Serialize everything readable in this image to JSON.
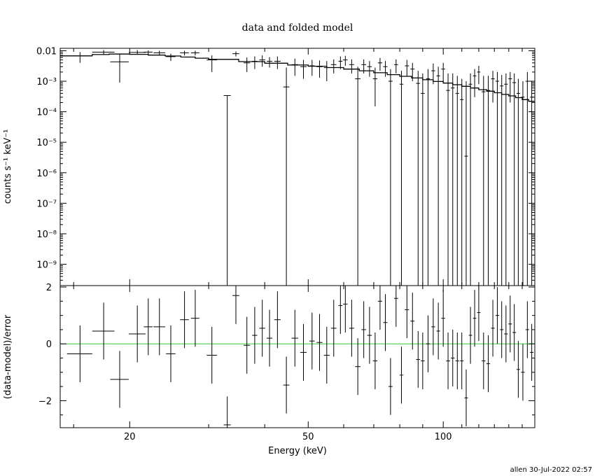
{
  "figure": {
    "title": "data and folded model",
    "footer": "allen 30-Jul-2022 02:57"
  },
  "chart_data": [
    {
      "panel": "spectrum",
      "type": "scatter",
      "title": "data and folded model",
      "ylabel": "counts s⁻¹ keV⁻¹",
      "xscale": "log",
      "yscale": "log",
      "xlim": [
        14,
        160
      ],
      "ylim": [
        2e-10,
        0.012
      ],
      "ytick_labels": [
        "0.01",
        "10⁻³",
        "10⁻⁴",
        "10⁻⁵",
        "10⁻⁶",
        "10⁻⁷",
        "10⁻⁸",
        "10⁻⁹"
      ],
      "ytick_values": [
        0.01,
        0.001,
        0.0001,
        1e-05,
        1e-06,
        1e-07,
        1e-08,
        1e-09
      ],
      "grid": false,
      "data": [
        {
          "x": 15.5,
          "y": 0.0067,
          "xerr": 1.0,
          "ylo": 0.004,
          "yhi": 0.009
        },
        {
          "x": 17.5,
          "y": 0.009,
          "xerr": 1.0,
          "ylo": 0.0075,
          "yhi": 0.0105
        },
        {
          "x": 19.0,
          "y": 0.0043,
          "xerr": 0.9,
          "ylo": 0.0009,
          "yhi": 0.008
        },
        {
          "x": 20.8,
          "y": 0.0088,
          "xerr": 0.9,
          "ylo": 0.0075,
          "yhi": 0.0105
        },
        {
          "x": 22.0,
          "y": 0.009,
          "xerr": 0.5,
          "ylo": 0.0078,
          "yhi": 0.0103
        },
        {
          "x": 23.3,
          "y": 0.0085,
          "xerr": 0.7,
          "ylo": 0.007,
          "yhi": 0.01
        },
        {
          "x": 24.7,
          "y": 0.0064,
          "xerr": 0.6,
          "ylo": 0.0046,
          "yhi": 0.008
        },
        {
          "x": 26.5,
          "y": 0.0085,
          "xerr": 0.6,
          "ylo": 0.007,
          "yhi": 0.01
        },
        {
          "x": 28.0,
          "y": 0.0085,
          "xerr": 0.6,
          "ylo": 0.007,
          "yhi": 0.01
        },
        {
          "x": 30.5,
          "y": 0.005,
          "xerr": 0.8,
          "ylo": 0.002,
          "yhi": 0.007
        },
        {
          "x": 33.0,
          "y": 0.00034,
          "xerr": 0.6,
          "ylo": 2e-10,
          "yhi": 0.00034
        },
        {
          "x": 34.5,
          "y": 0.008,
          "xerr": 0.6,
          "ylo": 0.0065,
          "yhi": 0.0095
        },
        {
          "x": 36.5,
          "y": 0.004,
          "xerr": 0.6,
          "ylo": 0.002,
          "yhi": 0.006
        },
        {
          "x": 38.0,
          "y": 0.0045,
          "xerr": 0.5,
          "ylo": 0.0025,
          "yhi": 0.0065
        },
        {
          "x": 39.5,
          "y": 0.005,
          "xerr": 0.6,
          "ylo": 0.003,
          "yhi": 0.007
        },
        {
          "x": 41.0,
          "y": 0.0045,
          "xerr": 0.6,
          "ylo": 0.0028,
          "yhi": 0.0062
        },
        {
          "x": 42.7,
          "y": 0.0045,
          "xerr": 0.7,
          "ylo": 0.0025,
          "yhi": 0.0065
        },
        {
          "x": 44.7,
          "y": 0.00065,
          "xerr": 0.7,
          "ylo": 2e-10,
          "yhi": 0.0028
        },
        {
          "x": 46.7,
          "y": 0.0035,
          "xerr": 0.8,
          "ylo": 0.0015,
          "yhi": 0.0055
        },
        {
          "x": 48.8,
          "y": 0.003,
          "xerr": 0.8,
          "ylo": 0.0012,
          "yhi": 0.005
        },
        {
          "x": 51.0,
          "y": 0.0032,
          "xerr": 0.7,
          "ylo": 0.0015,
          "yhi": 0.005
        },
        {
          "x": 53.0,
          "y": 0.003,
          "xerr": 0.8,
          "ylo": 0.0013,
          "yhi": 0.0048
        },
        {
          "x": 55.0,
          "y": 0.0028,
          "xerr": 0.8,
          "ylo": 0.001,
          "yhi": 0.0046
        },
        {
          "x": 57.0,
          "y": 0.0035,
          "xerr": 0.8,
          "ylo": 0.0018,
          "yhi": 0.0052
        },
        {
          "x": 59.0,
          "y": 0.0045,
          "xerr": 0.6,
          "ylo": 0.0025,
          "yhi": 0.0065
        },
        {
          "x": 60.5,
          "y": 0.005,
          "xerr": 0.7,
          "ylo": 0.0032,
          "yhi": 0.0068
        },
        {
          "x": 62.5,
          "y": 0.0035,
          "xerr": 0.8,
          "ylo": 0.0018,
          "yhi": 0.0052
        },
        {
          "x": 64.5,
          "y": 0.0012,
          "xerr": 0.9,
          "ylo": 2e-10,
          "yhi": 0.003
        },
        {
          "x": 66.5,
          "y": 0.0035,
          "xerr": 0.8,
          "ylo": 0.0018,
          "yhi": 0.0052
        },
        {
          "x": 68.5,
          "y": 0.003,
          "xerr": 0.8,
          "ylo": 0.0014,
          "yhi": 0.0046
        },
        {
          "x": 70.5,
          "y": 0.0012,
          "xerr": 0.8,
          "ylo": 0.00015,
          "yhi": 0.0028
        },
        {
          "x": 72.3,
          "y": 0.004,
          "xerr": 0.8,
          "ylo": 0.0022,
          "yhi": 0.0058
        },
        {
          "x": 74.3,
          "y": 0.003,
          "xerr": 0.8,
          "ylo": 0.0014,
          "yhi": 0.0046
        },
        {
          "x": 76.3,
          "y": 0.001,
          "xerr": 0.8,
          "ylo": 2e-10,
          "yhi": 0.0025
        },
        {
          "x": 78.5,
          "y": 0.0035,
          "xerr": 0.8,
          "ylo": 0.0018,
          "yhi": 0.0052
        },
        {
          "x": 80.7,
          "y": 0.0008,
          "xerr": 0.8,
          "ylo": 2e-10,
          "yhi": 0.0022
        },
        {
          "x": 83.0,
          "y": 0.0032,
          "xerr": 0.9,
          "ylo": 0.0015,
          "yhi": 0.005
        },
        {
          "x": 85.4,
          "y": 0.0025,
          "xerr": 0.9,
          "ylo": 0.001,
          "yhi": 0.004
        },
        {
          "x": 87.9,
          "y": 0.00085,
          "xerr": 0.9,
          "ylo": 2e-10,
          "yhi": 0.0022
        },
        {
          "x": 90.0,
          "y": 0.0004,
          "xerr": 0.9,
          "ylo": 2e-10,
          "yhi": 0.0018
        },
        {
          "x": 92.5,
          "y": 0.0012,
          "xerr": 0.9,
          "ylo": 2e-10,
          "yhi": 0.0025
        },
        {
          "x": 95.0,
          "y": 0.0022,
          "xerr": 0.9,
          "ylo": 0.0008,
          "yhi": 0.0038
        },
        {
          "x": 97.5,
          "y": 0.0015,
          "xerr": 0.9,
          "ylo": 2e-10,
          "yhi": 0.003
        },
        {
          "x": 100.0,
          "y": 0.0025,
          "xerr": 1.0,
          "ylo": 0.0009,
          "yhi": 0.004
        },
        {
          "x": 102.5,
          "y": 0.0005,
          "xerr": 1.0,
          "ylo": 2e-10,
          "yhi": 0.0018
        },
        {
          "x": 105.0,
          "y": 0.0006,
          "xerr": 1.0,
          "ylo": 2e-10,
          "yhi": 0.0018
        },
        {
          "x": 107.5,
          "y": 0.0004,
          "xerr": 1.0,
          "ylo": 2e-10,
          "yhi": 0.0015
        },
        {
          "x": 110.0,
          "y": 0.00025,
          "xerr": 1.0,
          "ylo": 2e-10,
          "yhi": 0.0012
        },
        {
          "x": 112.5,
          "y": 3.5e-06,
          "xerr": 1.0,
          "ylo": 2e-10,
          "yhi": 0.001
        },
        {
          "x": 115.0,
          "y": 0.0008,
          "xerr": 1.0,
          "ylo": 2e-10,
          "yhi": 0.0018
        },
        {
          "x": 117.5,
          "y": 0.0015,
          "xerr": 1.0,
          "ylo": 0.0003,
          "yhi": 0.0025
        },
        {
          "x": 120.0,
          "y": 0.002,
          "xerr": 1.0,
          "ylo": 0.0008,
          "yhi": 0.0032
        },
        {
          "x": 123.0,
          "y": 0.00045,
          "xerr": 1.2,
          "ylo": 2e-10,
          "yhi": 0.0015
        },
        {
          "x": 126.0,
          "y": 0.0005,
          "xerr": 1.2,
          "ylo": 2e-10,
          "yhi": 0.0015
        },
        {
          "x": 129.0,
          "y": 0.0012,
          "xerr": 1.2,
          "ylo": 0.0002,
          "yhi": 0.0022
        },
        {
          "x": 132.0,
          "y": 0.001,
          "xerr": 1.2,
          "ylo": 2e-10,
          "yhi": 0.002
        },
        {
          "x": 135.0,
          "y": 0.0007,
          "xerr": 1.2,
          "ylo": 2e-10,
          "yhi": 0.0016
        },
        {
          "x": 138.0,
          "y": 0.0008,
          "xerr": 1.3,
          "ylo": 2e-10,
          "yhi": 0.0018
        },
        {
          "x": 141.0,
          "y": 0.0012,
          "xerr": 1.3,
          "ylo": 0.0002,
          "yhi": 0.002
        },
        {
          "x": 144.0,
          "y": 0.0009,
          "xerr": 1.3,
          "ylo": 2e-10,
          "yhi": 0.0018
        },
        {
          "x": 147.0,
          "y": 0.0004,
          "xerr": 1.3,
          "ylo": 2e-10,
          "yhi": 0.0012
        },
        {
          "x": 150.5,
          "y": 0.0003,
          "xerr": 1.4,
          "ylo": 2e-10,
          "yhi": 0.001
        },
        {
          "x": 154.0,
          "y": 0.001,
          "xerr": 1.4,
          "ylo": 2e-10,
          "yhi": 0.002
        },
        {
          "x": 157.5,
          "y": 0.0003,
          "xerr": 1.4,
          "ylo": 2e-10,
          "yhi": 0.001
        }
      ],
      "model": {
        "x": [
          14,
          16.5,
          18,
          20,
          22,
          24,
          26,
          28,
          30,
          35,
          40,
          45,
          50,
          55,
          60,
          65,
          70,
          75,
          80,
          85,
          90,
          95,
          100,
          105,
          110,
          115,
          120,
          125,
          130,
          135,
          140,
          145,
          150,
          155,
          160
        ],
        "y": [
          0.0068,
          0.0075,
          0.0078,
          0.0076,
          0.0072,
          0.0067,
          0.0062,
          0.0057,
          0.0052,
          0.0044,
          0.0039,
          0.0034,
          0.0031,
          0.0028,
          0.0025,
          0.0022,
          0.0019,
          0.00165,
          0.00145,
          0.00128,
          0.00112,
          0.00098,
          0.00087,
          0.00077,
          0.00068,
          0.0006,
          0.00053,
          0.00047,
          0.00042,
          0.00037,
          0.00033,
          0.00029,
          0.00025,
          0.00022,
          0.00019
        ]
      },
      "color": "#000000"
    },
    {
      "panel": "residuals",
      "type": "scatter",
      "xlabel": "Energy (keV)",
      "ylabel": "(data-model)/error",
      "xscale": "log",
      "xlim": [
        14,
        160
      ],
      "ylim": [
        -2.95,
        2.05
      ],
      "xtick_labels": [
        "20",
        "50",
        "100"
      ],
      "xtick_values": [
        20,
        50,
        100
      ],
      "ytick_labels": [
        "2",
        "0",
        "−2"
      ],
      "ytick_values": [
        2,
        0,
        -2
      ],
      "zero_line_color": "#33cc33",
      "grid": false,
      "data": [
        {
          "x": 15.5,
          "y": -0.35,
          "xerr": 1.0,
          "err": 1.0
        },
        {
          "x": 17.5,
          "y": 0.45,
          "xerr": 1.0,
          "err": 1.0
        },
        {
          "x": 19.0,
          "y": -1.25,
          "xerr": 0.9,
          "err": 1.0
        },
        {
          "x": 20.8,
          "y": 0.35,
          "xerr": 0.9,
          "err": 1.0
        },
        {
          "x": 22.0,
          "y": 0.6,
          "xerr": 0.5,
          "err": 1.0
        },
        {
          "x": 23.3,
          "y": 0.6,
          "xerr": 0.7,
          "err": 1.0
        },
        {
          "x": 24.7,
          "y": -0.35,
          "xerr": 0.6,
          "err": 1.0
        },
        {
          "x": 26.5,
          "y": 0.85,
          "xerr": 0.6,
          "err": 1.0
        },
        {
          "x": 28.0,
          "y": 0.9,
          "xerr": 0.6,
          "err": 1.0
        },
        {
          "x": 30.5,
          "y": -0.4,
          "xerr": 0.8,
          "err": 1.0
        },
        {
          "x": 33.0,
          "y": -2.85,
          "xerr": 0.6,
          "err": 1.0
        },
        {
          "x": 34.5,
          "y": 1.7,
          "xerr": 0.6,
          "err": 1.0
        },
        {
          "x": 36.5,
          "y": -0.05,
          "xerr": 0.6,
          "err": 1.0
        },
        {
          "x": 38.0,
          "y": 0.3,
          "xerr": 0.5,
          "err": 1.0
        },
        {
          "x": 39.5,
          "y": 0.55,
          "xerr": 0.6,
          "err": 1.0
        },
        {
          "x": 41.0,
          "y": 0.2,
          "xerr": 0.6,
          "err": 1.0
        },
        {
          "x": 42.7,
          "y": 0.85,
          "xerr": 0.7,
          "err": 1.0
        },
        {
          "x": 44.7,
          "y": -1.45,
          "xerr": 0.7,
          "err": 1.0
        },
        {
          "x": 46.7,
          "y": 0.2,
          "xerr": 0.8,
          "err": 1.0
        },
        {
          "x": 48.8,
          "y": -0.3,
          "xerr": 0.8,
          "err": 1.0
        },
        {
          "x": 51.0,
          "y": 0.1,
          "xerr": 0.7,
          "err": 1.0
        },
        {
          "x": 53.0,
          "y": 0.05,
          "xerr": 0.8,
          "err": 1.0
        },
        {
          "x": 55.0,
          "y": -0.4,
          "xerr": 0.8,
          "err": 1.0
        },
        {
          "x": 57.0,
          "y": 0.55,
          "xerr": 0.8,
          "err": 1.0
        },
        {
          "x": 59.0,
          "y": 1.35,
          "xerr": 0.6,
          "err": 1.0
        },
        {
          "x": 60.5,
          "y": 1.4,
          "xerr": 0.7,
          "err": 1.0
        },
        {
          "x": 62.5,
          "y": 0.55,
          "xerr": 0.8,
          "err": 1.0
        },
        {
          "x": 64.5,
          "y": -0.8,
          "xerr": 0.9,
          "err": 1.0
        },
        {
          "x": 66.5,
          "y": 0.5,
          "xerr": 0.8,
          "err": 1.0
        },
        {
          "x": 68.5,
          "y": 0.3,
          "xerr": 0.8,
          "err": 1.0
        },
        {
          "x": 70.5,
          "y": -0.6,
          "xerr": 0.8,
          "err": 1.0
        },
        {
          "x": 72.3,
          "y": 1.5,
          "xerr": 0.8,
          "err": 1.0
        },
        {
          "x": 74.3,
          "y": 0.75,
          "xerr": 0.8,
          "err": 1.0
        },
        {
          "x": 76.3,
          "y": -1.5,
          "xerr": 0.8,
          "err": 1.0
        },
        {
          "x": 78.5,
          "y": 1.6,
          "xerr": 0.8,
          "err": 1.0
        },
        {
          "x": 80.7,
          "y": -1.1,
          "xerr": 0.8,
          "err": 1.0
        },
        {
          "x": 83.0,
          "y": 1.2,
          "xerr": 0.9,
          "err": 1.0
        },
        {
          "x": 85.4,
          "y": 0.8,
          "xerr": 0.9,
          "err": 1.0
        },
        {
          "x": 87.9,
          "y": -0.55,
          "xerr": 0.9,
          "err": 1.0
        },
        {
          "x": 90.0,
          "y": -0.6,
          "xerr": 0.9,
          "err": 1.0
        },
        {
          "x": 92.5,
          "y": 0.0,
          "xerr": 0.9,
          "err": 1.0
        },
        {
          "x": 95.0,
          "y": 0.6,
          "xerr": 0.9,
          "err": 1.0
        },
        {
          "x": 97.5,
          "y": 0.45,
          "xerr": 0.9,
          "err": 1.0
        },
        {
          "x": 100.0,
          "y": 0.9,
          "xerr": 1.0,
          "err": 1.0
        },
        {
          "x": 102.5,
          "y": -0.6,
          "xerr": 1.0,
          "err": 1.0
        },
        {
          "x": 105.0,
          "y": -0.5,
          "xerr": 1.0,
          "err": 1.0
        },
        {
          "x": 107.5,
          "y": -0.6,
          "xerr": 1.0,
          "err": 1.0
        },
        {
          "x": 110.0,
          "y": -0.6,
          "xerr": 1.0,
          "err": 1.0
        },
        {
          "x": 112.5,
          "y": -1.9,
          "xerr": 1.0,
          "err": 1.0
        },
        {
          "x": 115.0,
          "y": 0.3,
          "xerr": 1.0,
          "err": 1.0
        },
        {
          "x": 117.5,
          "y": 0.9,
          "xerr": 1.0,
          "err": 1.0
        },
        {
          "x": 120.0,
          "y": 1.1,
          "xerr": 1.0,
          "err": 1.0
        },
        {
          "x": 123.0,
          "y": -0.6,
          "xerr": 1.2,
          "err": 1.0
        },
        {
          "x": 126.0,
          "y": -0.7,
          "xerr": 1.2,
          "err": 1.0
        },
        {
          "x": 129.0,
          "y": 0.55,
          "xerr": 1.2,
          "err": 1.0
        },
        {
          "x": 132.0,
          "y": 1.0,
          "xerr": 1.2,
          "err": 1.0
        },
        {
          "x": 135.0,
          "y": 0.5,
          "xerr": 1.2,
          "err": 1.0
        },
        {
          "x": 138.0,
          "y": 0.35,
          "xerr": 1.3,
          "err": 1.0
        },
        {
          "x": 141.0,
          "y": 0.7,
          "xerr": 1.3,
          "err": 1.0
        },
        {
          "x": 144.0,
          "y": 0.4,
          "xerr": 1.3,
          "err": 1.0
        },
        {
          "x": 147.0,
          "y": -0.9,
          "xerr": 1.3,
          "err": 1.0
        },
        {
          "x": 150.5,
          "y": -1.0,
          "xerr": 1.4,
          "err": 1.0
        },
        {
          "x": 154.0,
          "y": 0.5,
          "xerr": 1.4,
          "err": 1.0
        },
        {
          "x": 157.5,
          "y": -0.3,
          "xerr": 1.4,
          "err": 1.0
        }
      ],
      "color": "#000000"
    }
  ]
}
